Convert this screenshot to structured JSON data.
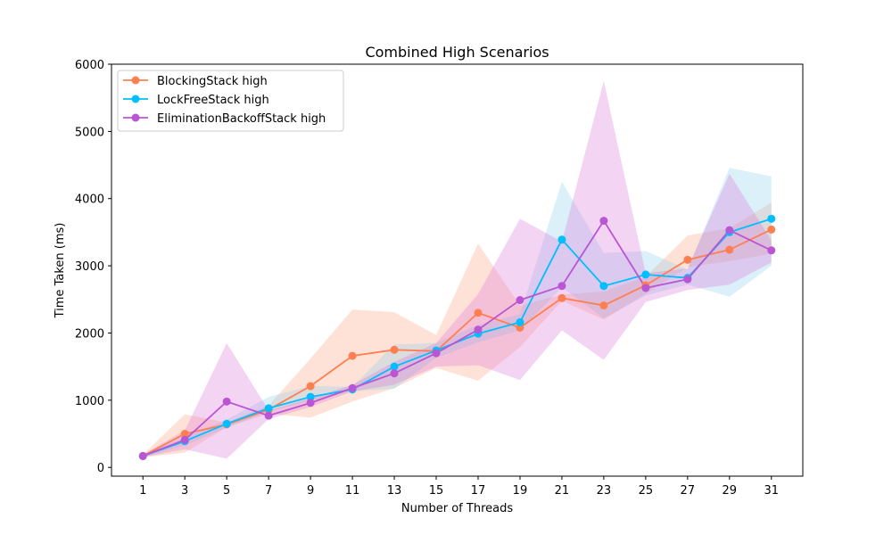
{
  "chart_data": {
    "type": "line",
    "title": "Combined High Scenarios",
    "xlabel": "Number of Threads",
    "ylabel": "Time Taken (ms)",
    "x": [
      1,
      3,
      5,
      7,
      9,
      11,
      13,
      15,
      17,
      19,
      21,
      23,
      25,
      27,
      29,
      31
    ],
    "xlim": [
      -0.5,
      32.5
    ],
    "ylim": [
      -130,
      6000
    ],
    "yticks": [
      0,
      1000,
      2000,
      3000,
      4000,
      5000,
      6000
    ],
    "legend_position": "upper-left",
    "grid": false,
    "series": [
      {
        "name": "BlockingStack high",
        "color": "#ff7f50",
        "band_color": "#ffa07a",
        "values": [
          170,
          500,
          640,
          860,
          1210,
          1660,
          1750,
          1730,
          2300,
          2080,
          2520,
          2410,
          2710,
          3090,
          3240,
          3540
        ],
        "lower": [
          150,
          220,
          600,
          800,
          740,
          980,
          1180,
          1480,
          1290,
          1790,
          2480,
          2200,
          2580,
          2980,
          3070,
          3180
        ],
        "upper": [
          190,
          790,
          670,
          920,
          1620,
          2350,
          2310,
          1970,
          3330,
          2410,
          2570,
          2620,
          2840,
          3450,
          3560,
          3940
        ]
      },
      {
        "name": "LockFreeStack high",
        "color": "#00bfff",
        "band_color": "#87ceeb",
        "values": [
          170,
          390,
          650,
          880,
          1050,
          1160,
          1500,
          1740,
          1990,
          2160,
          3390,
          2700,
          2870,
          2820,
          3500,
          3700
        ],
        "lower": [
          150,
          330,
          590,
          830,
          990,
          1130,
          1170,
          1630,
          1860,
          2040,
          2680,
          2220,
          2560,
          2720,
          2540,
          3000
        ],
        "upper": [
          190,
          450,
          710,
          1050,
          1210,
          1200,
          1830,
          1850,
          2120,
          2280,
          4250,
          3190,
          3220,
          2950,
          4460,
          4330
        ]
      },
      {
        "name": "EliminationBackoffStack high",
        "color": "#ba55d3",
        "band_color": "#da70d6",
        "values": [
          170,
          410,
          980,
          770,
          960,
          1180,
          1400,
          1700,
          2050,
          2490,
          2700,
          3670,
          2670,
          2800,
          3530,
          3230
        ],
        "lower": [
          150,
          270,
          130,
          720,
          900,
          1130,
          1230,
          1500,
          1520,
          1300,
          2040,
          1600,
          2460,
          2640,
          2720,
          3050
        ],
        "upper": [
          190,
          550,
          1850,
          850,
          1030,
          1230,
          1570,
          1850,
          2580,
          3700,
          3360,
          5750,
          2890,
          2960,
          4370,
          3380
        ]
      }
    ]
  }
}
